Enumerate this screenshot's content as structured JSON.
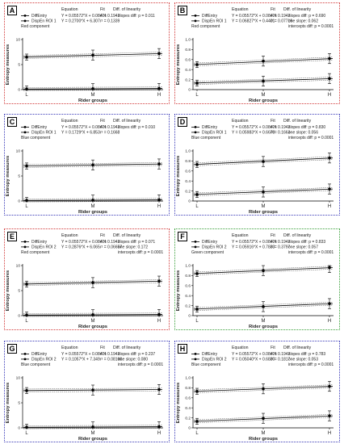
{
  "header": {
    "equation": "Equation",
    "fit": "Fit",
    "diff": "Diff. of linearity"
  },
  "axis": {
    "ylabel": "Entropy measures",
    "xlabel": "Rider groups",
    "ticks": [
      "L",
      "M",
      "H"
    ]
  },
  "colors": {
    "red": "#d23b3b",
    "blue": "#3b3bb8",
    "green": "#3aa03a"
  },
  "chart_data": [
    {
      "panel": "A",
      "type": "line",
      "border_color": "red",
      "ylim": [
        0,
        10
      ],
      "yticks": [
        "0",
        "5",
        "10"
      ],
      "component": "Red component",
      "stats": [
        "slopes diff: p = 0.011"
      ],
      "x": [
        "L",
        "M",
        "H"
      ],
      "series": [
        {
          "name": "DiffEntry",
          "equation": "Y = 0.05572*X + 0.08421",
          "fit": "r² = 0.1942",
          "values": [
            0.12,
            0.18,
            0.23
          ]
        },
        {
          "name": "DispEn ROI 1",
          "equation": "Y = 0.2700*X + 6.307",
          "fit": "r² = 0.1339",
          "values": [
            6.5,
            6.9,
            7.2
          ]
        }
      ]
    },
    {
      "panel": "B",
      "type": "line",
      "border_color": "red",
      "ylim": [
        0,
        1.0
      ],
      "yticks": [
        "0",
        "0.2",
        "0.4",
        "0.6",
        "0.8",
        "1.0"
      ],
      "component": "Red component",
      "stats": [
        "slopes diff: p = 0.690",
        "one slope: 0.062",
        "intercepts diff: p = 0.0001"
      ],
      "x": [
        "L",
        "M",
        "H"
      ],
      "series": [
        {
          "name": "DiffEntry",
          "equation": "Y = 0.05572*X + 0.08421",
          "fit": "r² = 0.1942",
          "values": [
            0.13,
            0.17,
            0.22
          ]
        },
        {
          "name": "DispEn ROI 1",
          "equation": "Y = 0.06827*X + 0.4401",
          "fit": "r² = 0.07719",
          "values": [
            0.5,
            0.57,
            0.62
          ]
        }
      ]
    },
    {
      "panel": "C",
      "type": "line",
      "border_color": "blue",
      "ylim": [
        0,
        10
      ],
      "yticks": [
        "0",
        "5",
        "10"
      ],
      "component": "Blue component",
      "stats": [
        "slopes diff: p = 0.010"
      ],
      "x": [
        "L",
        "M",
        "H"
      ],
      "series": [
        {
          "name": "DiffEntry",
          "equation": "Y = 0.05572*X + 0.08421",
          "fit": "r² = 0.1942",
          "values": [
            0.12,
            0.18,
            0.23
          ]
        },
        {
          "name": "DispEn ROI 1",
          "equation": "Y = 0.1729*X + 6.853",
          "fit": "r² = 0.1668",
          "values": [
            7.0,
            7.2,
            7.4
          ]
        }
      ]
    },
    {
      "panel": "D",
      "type": "line",
      "border_color": "blue",
      "ylim": [
        0,
        1.0
      ],
      "yticks": [
        "0",
        "0.2",
        "0.4",
        "0.6",
        "0.8",
        "1.0"
      ],
      "component": "Blue component",
      "stats": [
        "slopes diff: p = 0.830",
        "one slope: 0.056",
        "intercepts diff: p = 0.0001"
      ],
      "x": [
        "L",
        "M",
        "H"
      ],
      "series": [
        {
          "name": "DiffEntry",
          "equation": "Y = 0.05572*X + 0.08421",
          "fit": "r² = 0.1942",
          "values": [
            0.13,
            0.18,
            0.24
          ]
        },
        {
          "name": "DispEn ROI 1",
          "equation": "Y = 0.05983*X + 0.6678",
          "fit": "r² = 0.1663",
          "values": [
            0.73,
            0.79,
            0.86
          ]
        }
      ]
    },
    {
      "panel": "E",
      "type": "line",
      "border_color": "red",
      "ylim": [
        0,
        10
      ],
      "yticks": [
        "0",
        "5",
        "10"
      ],
      "component": "Red component",
      "stats": [
        "slopes diff: p = 0.071",
        "one slope: 0.172",
        "intercepts diff: p = 0.0001"
      ],
      "x": [
        "L",
        "M",
        "H"
      ],
      "series": [
        {
          "name": "DiffEntry",
          "equation": "Y = 0.05572*X + 0.08421",
          "fit": "r² = 0.1942",
          "values": [
            0.12,
            0.18,
            0.23
          ]
        },
        {
          "name": "DispEn ROI 2",
          "equation": "Y = 0.2876*X + 6.065",
          "fit": "r² = 0.06657",
          "values": [
            6.3,
            6.6,
            6.9
          ]
        }
      ]
    },
    {
      "panel": "F",
      "type": "line",
      "border_color": "green",
      "ylim": [
        0,
        1.0
      ],
      "yticks": [
        "0",
        "0.2",
        "0.4",
        "0.6",
        "0.8",
        "1.0"
      ],
      "component": "Green component",
      "stats": [
        "slopes diff: p = 0.833",
        "one slope: 0.057",
        "intercepts diff: p = 0.0001"
      ],
      "x": [
        "L",
        "M",
        "H"
      ],
      "series": [
        {
          "name": "DiffEntry",
          "equation": "Y = 0.05572*X + 0.08421",
          "fit": "r² = 0.1942",
          "values": [
            0.13,
            0.18,
            0.24
          ]
        },
        {
          "name": "DispEn ROI 2",
          "equation": "Y = 0.05916*X + 0.7833",
          "fit": "r² = 0.3797",
          "values": [
            0.84,
            0.9,
            0.96
          ]
        }
      ]
    },
    {
      "panel": "G",
      "type": "line",
      "border_color": "blue",
      "ylim": [
        0,
        10
      ],
      "yticks": [
        "0",
        "5",
        "10"
      ],
      "component": "Blue component",
      "stats": [
        "slopes diff: p = 0.237",
        "one slope: 0.080",
        "intercepts diff: p = 0.0001"
      ],
      "x": [
        "L",
        "M",
        "H"
      ],
      "series": [
        {
          "name": "DiffEntry",
          "equation": "Y = 0.05572*X + 0.08421",
          "fit": "r² = 0.1942",
          "values": [
            0.12,
            0.18,
            0.23
          ]
        },
        {
          "name": "DispEn ROI 2",
          "equation": "Y = 0.1057*X + 7.349",
          "fit": "r² = 0.08160",
          "values": [
            7.45,
            7.55,
            7.66
          ]
        }
      ]
    },
    {
      "panel": "H",
      "type": "line",
      "border_color": "blue",
      "ylim": [
        0,
        1.0
      ],
      "yticks": [
        "0",
        "0.2",
        "0.4",
        "0.6",
        "0.8",
        "1.0"
      ],
      "component": "Blue component",
      "stats": [
        "slopes diff: p = 0.783",
        "one slope: 0.053",
        "intercepts diff: p = 0.0001"
      ],
      "x": [
        "L",
        "M",
        "H"
      ],
      "series": [
        {
          "name": "DiffEntry",
          "equation": "Y = 0.05572*X + 0.08421",
          "fit": "r² = 0.1942",
          "values": [
            0.13,
            0.19,
            0.24
          ]
        },
        {
          "name": "DispEn ROI 2",
          "equation": "Y = 0.05040*X + 0.6830",
          "fit": "r² = 0.1817",
          "values": [
            0.73,
            0.78,
            0.83
          ]
        }
      ]
    }
  ]
}
